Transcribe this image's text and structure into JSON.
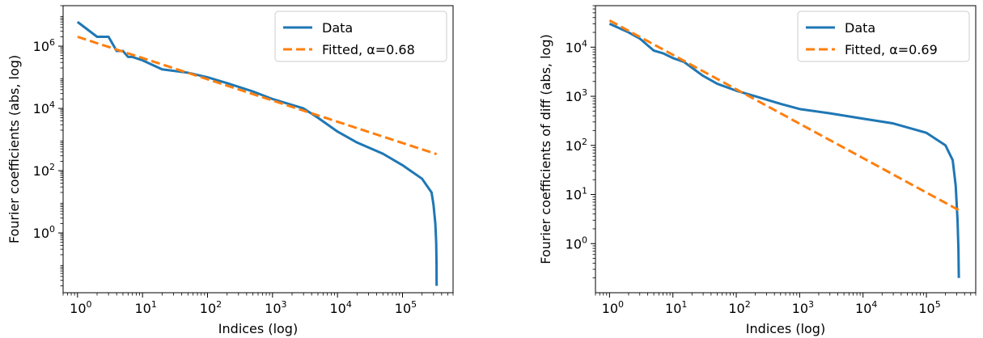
{
  "chart_data": [
    {
      "type": "line",
      "xscale": "log",
      "yscale": "log",
      "xlabel": "Indices (log)",
      "ylabel": "Fourier coefficients (abs, log)",
      "xlim": [
        0.6,
        600000
      ],
      "ylim": [
        0.012,
        20000000
      ],
      "x_ticks": [
        1,
        10,
        100,
        1000,
        10000,
        100000
      ],
      "x_tick_labels": [
        {
          "base": "10",
          "exp": "0"
        },
        {
          "base": "10",
          "exp": "1"
        },
        {
          "base": "10",
          "exp": "2"
        },
        {
          "base": "10",
          "exp": "3"
        },
        {
          "base": "10",
          "exp": "4"
        },
        {
          "base": "10",
          "exp": "5"
        }
      ],
      "y_ticks": [
        1,
        100,
        10000,
        1000000
      ],
      "y_tick_labels": [
        {
          "base": "10",
          "exp": "0"
        },
        {
          "base": "10",
          "exp": "2"
        },
        {
          "base": "10",
          "exp": "4"
        },
        {
          "base": "10",
          "exp": "6"
        }
      ],
      "legend_position": "top-right",
      "grid": false,
      "series": [
        {
          "name": "Data",
          "color": "#1f77b4",
          "style": "solid",
          "x": [
            1,
            2,
            3,
            4,
            5,
            6,
            7,
            10,
            20,
            50,
            100,
            200,
            500,
            1000,
            3000,
            5000,
            10000,
            20000,
            50000,
            100000,
            200000,
            280000,
            300000,
            320000,
            330000,
            334000,
            335000
          ],
          "y": [
            6000000,
            2000000,
            2000000,
            700000,
            700000,
            450000,
            450000,
            350000,
            180000,
            140000,
            100000,
            65000,
            35000,
            20000,
            10000,
            5000,
            1800,
            800,
            350,
            150,
            55,
            20,
            8,
            2,
            0.5,
            0.1,
            0.02
          ]
        },
        {
          "name": "Fitted, α=0.68",
          "color": "#ff7f0e",
          "style": "dashed",
          "x": [
            1,
            335000
          ],
          "y": [
            2000000,
            340
          ]
        }
      ]
    },
    {
      "type": "line",
      "xscale": "log",
      "yscale": "log",
      "xlabel": "Indices (log)",
      "ylabel": "Fourier coefficients of diff (abs, log)",
      "xlim": [
        0.6,
        600000
      ],
      "ylim": [
        0.1,
        70000
      ],
      "x_ticks": [
        1,
        10,
        100,
        1000,
        10000,
        100000
      ],
      "x_tick_labels": [
        {
          "base": "10",
          "exp": "0"
        },
        {
          "base": "10",
          "exp": "1"
        },
        {
          "base": "10",
          "exp": "2"
        },
        {
          "base": "10",
          "exp": "3"
        },
        {
          "base": "10",
          "exp": "4"
        },
        {
          "base": "10",
          "exp": "5"
        }
      ],
      "y_ticks": [
        1,
        10,
        100,
        1000,
        10000
      ],
      "y_tick_labels": [
        {
          "base": "10",
          "exp": "0"
        },
        {
          "base": "10",
          "exp": "1"
        },
        {
          "base": "10",
          "exp": "2"
        },
        {
          "base": "10",
          "exp": "3"
        },
        {
          "base": "10",
          "exp": "4"
        }
      ],
      "legend_position": "top-right",
      "grid": false,
      "series": [
        {
          "name": "Data",
          "color": "#1f77b4",
          "style": "solid",
          "x": [
            1,
            2,
            3,
            5,
            7,
            10,
            15,
            20,
            30,
            50,
            100,
            200,
            500,
            1000,
            3000,
            10000,
            30000,
            100000,
            200000,
            260000,
            290000,
            310000,
            320000,
            324000,
            325000
          ],
          "y": [
            30000,
            20000,
            15000,
            8500,
            7500,
            6000,
            5000,
            3800,
            2600,
            1800,
            1300,
            1000,
            700,
            550,
            450,
            350,
            280,
            180,
            100,
            50,
            15,
            3,
            0.8,
            0.25,
            0.2
          ]
        },
        {
          "name": "Fitted, α=0.69",
          "color": "#ff7f0e",
          "style": "dashed",
          "x": [
            1,
            325000
          ],
          "y": [
            35000,
            4.8
          ]
        }
      ]
    }
  ]
}
